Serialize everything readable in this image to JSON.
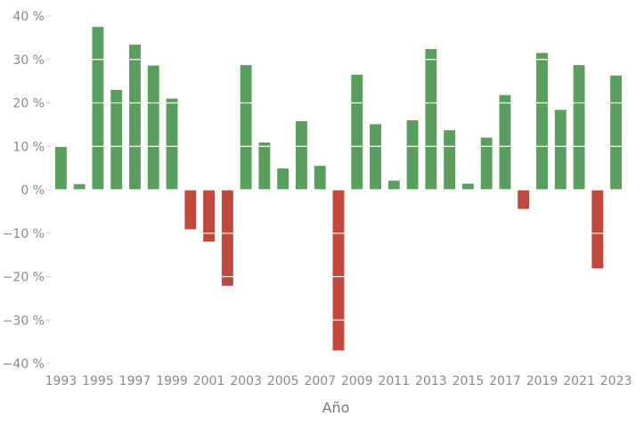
{
  "chart_data": {
    "type": "bar",
    "title": "",
    "xlabel": "Año",
    "ylabel": "",
    "ylim": [
      -40,
      40
    ],
    "y_ticks": [
      -40,
      -30,
      -20,
      -10,
      0,
      10,
      20,
      30,
      40
    ],
    "y_tick_labels": [
      "−40 %",
      "−30 %",
      "−20 %",
      "−10 %",
      "0 %",
      "10 %",
      "20 %",
      "30 %",
      "40 %"
    ],
    "x_tick_labels": [
      "1993",
      "1995",
      "1997",
      "1999",
      "2001",
      "2003",
      "2005",
      "2007",
      "2009",
      "2011",
      "2013",
      "2015",
      "2017",
      "2019",
      "2021",
      "2023"
    ],
    "grid": true,
    "legend": "none",
    "colors": {
      "positive": "#5a9e5e",
      "negative": "#c0473c"
    },
    "categories": [
      "1993",
      "1994",
      "1995",
      "1996",
      "1997",
      "1998",
      "1999",
      "2000",
      "2001",
      "2002",
      "2003",
      "2004",
      "2005",
      "2006",
      "2007",
      "2008",
      "2009",
      "2010",
      "2011",
      "2012",
      "2013",
      "2014",
      "2015",
      "2016",
      "2017",
      "2018",
      "2019",
      "2020",
      "2021",
      "2022",
      "2023"
    ],
    "values": [
      10,
      1.3,
      37.5,
      23,
      33.4,
      28.6,
      21,
      -9.1,
      -11.9,
      -22.1,
      28.7,
      10.9,
      4.9,
      15.8,
      5.5,
      -37,
      26.5,
      15.1,
      2.1,
      16,
      32.4,
      13.7,
      1.4,
      12,
      21.8,
      -4.4,
      31.5,
      18.4,
      28.7,
      -18.1,
      26.3
    ]
  }
}
